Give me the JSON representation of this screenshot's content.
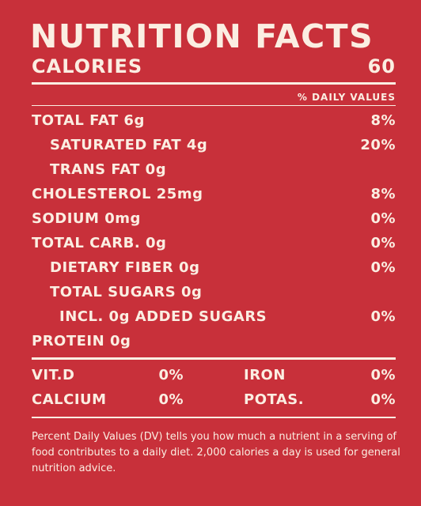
{
  "title": "NUTRITION FACTS",
  "calories": {
    "label": "CALORIES",
    "value": "60"
  },
  "dv_header": "% DAILY VALUES",
  "nutrients": [
    {
      "label": "TOTAL FAT 6g",
      "pct": "8%"
    },
    {
      "label": "SATURATED FAT 4g",
      "pct": "20%"
    },
    {
      "label": "TRANS FAT 0g",
      "pct": ""
    },
    {
      "label": "CHOLESTEROL 25mg",
      "pct": "8%"
    },
    {
      "label": "SODIUM 0mg",
      "pct": "0%"
    },
    {
      "label": "TOTAL CARB. 0g",
      "pct": "0%"
    },
    {
      "label": "DIETARY FIBER 0g",
      "pct": "0%"
    },
    {
      "label": "TOTAL SUGARS 0g",
      "pct": ""
    },
    {
      "label": "INCL. 0g ADDED SUGARS",
      "pct": "0%"
    },
    {
      "label": "PROTEIN 0g",
      "pct": ""
    }
  ],
  "vitamins": [
    {
      "left_label": "VIT.D",
      "left_pct": "0%",
      "right_label": "IRON",
      "right_pct": "0%"
    },
    {
      "left_label": "CALCIUM",
      "left_pct": "0%",
      "right_label": "POTAS.",
      "right_pct": "0%"
    }
  ],
  "footnote": "Percent Daily Values (DV) tells you how much a nutrient in a serving of food contributes to a daily diet. 2,000 calories a day is used for general nutrition advice.",
  "colors": {
    "background": "#c8303a",
    "text": "#fbeee2"
  }
}
